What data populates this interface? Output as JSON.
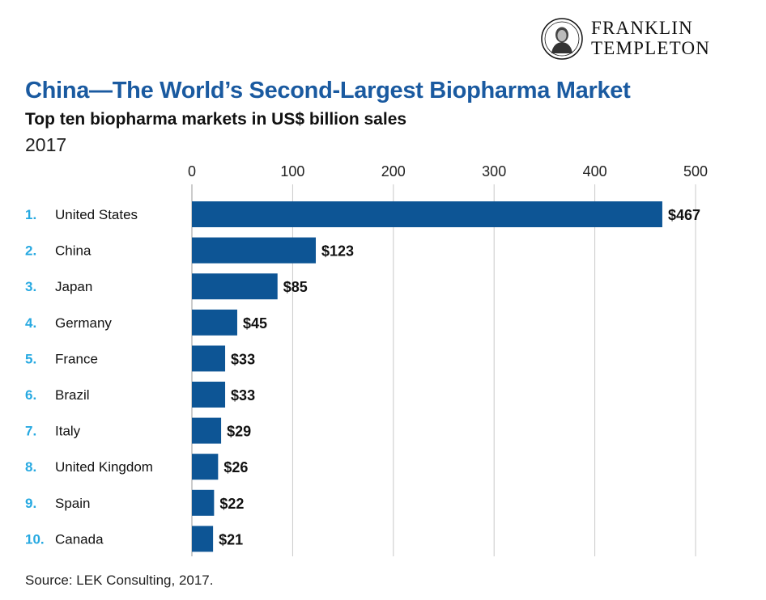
{
  "brand": {
    "line1": "FRANKLIN",
    "line2": "TEMPLETON",
    "seal_icon": "franklin-portrait-seal-icon"
  },
  "title": "China—The World’s Second-Largest Biopharma Market",
  "subtitle": "Top ten biopharma markets in US$ billion sales",
  "year": "2017",
  "source": "Source: LEK Consulting, 2017.",
  "colors": {
    "bar": "#0d5595",
    "title": "#1a5aa0",
    "rank": "#27a9e1",
    "grid": "#c9c9c9"
  },
  "chart_data": {
    "type": "bar",
    "orientation": "horizontal",
    "title": "China—The World’s Second-Largest Biopharma Market",
    "subtitle": "Top ten biopharma markets in US$ billion sales",
    "ranks": [
      "1.",
      "2.",
      "3.",
      "4.",
      "5.",
      "6.",
      "7.",
      "8.",
      "9.",
      "10."
    ],
    "categories": [
      "United States",
      "China",
      "Japan",
      "Germany",
      "France",
      "Brazil",
      "Italy",
      "United Kingdom",
      "Spain",
      "Canada"
    ],
    "values": [
      467,
      123,
      85,
      45,
      33,
      33,
      29,
      26,
      22,
      21
    ],
    "value_labels": [
      "$467",
      "$123",
      "$85",
      "$45",
      "$33",
      "$33",
      "$29",
      "$26",
      "$22",
      "$21"
    ],
    "xticks": [
      0,
      100,
      200,
      300,
      400,
      500
    ],
    "xlim": [
      0,
      500
    ],
    "grid": true,
    "axis_position": "top",
    "legend": "none"
  }
}
